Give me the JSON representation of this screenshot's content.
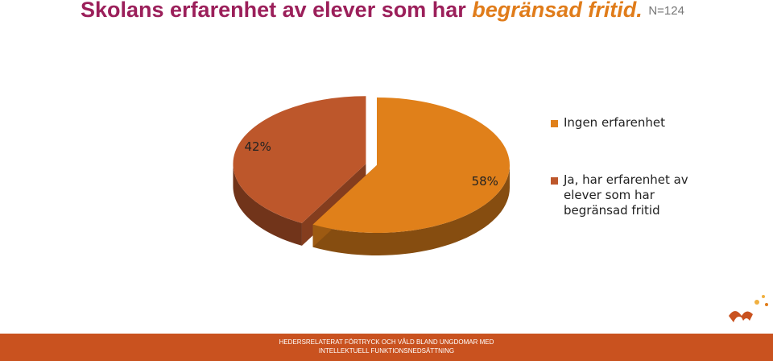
{
  "chart_data": {
    "type": "pie3d",
    "title": [
      "Skolans erfarenhet av elever som har",
      "begränsad fritid.",
      "N=124"
    ],
    "categories": [
      "Ingen erfarenhet",
      "Ja, har erfarenhet av elever som har begränsad fritid"
    ],
    "values": [
      58,
      42
    ],
    "value_labels": [
      "58%",
      "42%"
    ],
    "colors": [
      "#e0801a",
      "#bd572b"
    ],
    "legend": "right"
  },
  "footer": "HEDERSRELATERAT FÖRTRYCK OCH VÅLD BLAND UNGDOMAR MED INTELLEKTUELL FUNKTIONSNEDSÄTTNING"
}
